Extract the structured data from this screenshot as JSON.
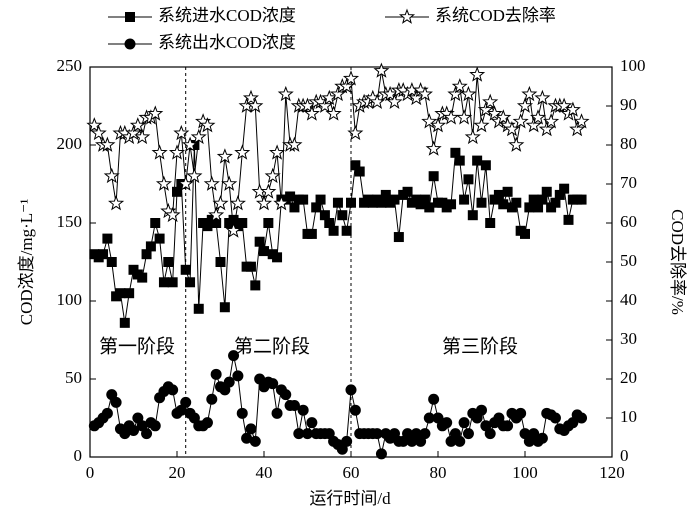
{
  "chart_data": {
    "type": "line",
    "xlabel": "运行时间/d",
    "ylabel": "COD浓度/mg·L⁻¹",
    "y2label": "COD去除率/%",
    "xlim": [
      0,
      120
    ],
    "xticks": [
      0,
      20,
      40,
      60,
      80,
      100,
      120
    ],
    "ylim": [
      0,
      250
    ],
    "yticks": [
      0,
      50,
      100,
      150,
      200,
      250
    ],
    "y2lim": [
      0,
      100
    ],
    "y2ticks": [
      0,
      10,
      20,
      30,
      40,
      50,
      60,
      70,
      80,
      90,
      100
    ],
    "phase_boundaries": [
      22,
      60
    ],
    "annotations": [
      "第一阶段",
      "第二阶段",
      "第三阶段"
    ],
    "x": [
      1,
      2,
      3,
      4,
      5,
      6,
      7,
      8,
      9,
      10,
      11,
      12,
      13,
      14,
      15,
      16,
      17,
      18,
      19,
      20,
      21,
      22,
      23,
      24,
      25,
      26,
      27,
      28,
      29,
      30,
      31,
      32,
      33,
      34,
      35,
      36,
      37,
      38,
      39,
      40,
      41,
      42,
      43,
      44,
      45,
      46,
      47,
      48,
      49,
      50,
      51,
      52,
      53,
      54,
      55,
      56,
      57,
      58,
      59,
      60,
      61,
      62,
      63,
      64,
      65,
      66,
      67,
      68,
      69,
      70,
      71,
      72,
      73,
      74,
      75,
      76,
      77,
      78,
      79,
      80,
      81,
      82,
      83,
      84,
      85,
      86,
      87,
      88,
      89,
      90,
      91,
      92,
      93,
      94,
      95,
      96,
      97,
      98,
      99,
      100,
      101,
      102,
      103,
      104,
      105,
      106,
      107,
      108,
      109,
      110,
      111,
      112,
      113
    ],
    "series": [
      {
        "name": "系统进水COD浓度",
        "color": "#000000",
        "marker": "square",
        "values": [
          130,
          128,
          130,
          140,
          125,
          103,
          105,
          86,
          105,
          120,
          117,
          115,
          130,
          135,
          150,
          140,
          112,
          125,
          112,
          170,
          175,
          120,
          112,
          200,
          95,
          150,
          148,
          152,
          150,
          125,
          96,
          150,
          152,
          148,
          150,
          122,
          122,
          110,
          138,
          132,
          150,
          130,
          128,
          165,
          165,
          167,
          160,
          165,
          165,
          143,
          143,
          160,
          165,
          155,
          150,
          145,
          163,
          155,
          145,
          163,
          187,
          183,
          163,
          165,
          163,
          165,
          163,
          168,
          163,
          165,
          141,
          168,
          170,
          163,
          165,
          162,
          165,
          160,
          180,
          163,
          163,
          160,
          162,
          195,
          190,
          165,
          178,
          155,
          190,
          163,
          187,
          150,
          165,
          168,
          162,
          170,
          160,
          163,
          145,
          143,
          160,
          165,
          160,
          165,
          170,
          160,
          163,
          168,
          172,
          152,
          165,
          165,
          165
        ]
      },
      {
        "name": "系统出水COD浓度",
        "color": "#000000",
        "marker": "circle",
        "values": [
          20,
          22,
          25,
          28,
          40,
          35,
          18,
          15,
          20,
          17,
          25,
          20,
          15,
          22,
          20,
          38,
          42,
          45,
          43,
          28,
          30,
          35,
          28,
          25,
          20,
          20,
          22,
          37,
          53,
          45,
          43,
          48,
          65,
          52,
          28,
          12,
          18,
          10,
          50,
          45,
          48,
          47,
          28,
          43,
          40,
          33,
          33,
          15,
          30,
          15,
          22,
          15,
          15,
          15,
          15,
          10,
          8,
          5,
          10,
          43,
          30,
          15,
          15,
          15,
          15,
          15,
          2,
          15,
          12,
          15,
          10,
          10,
          15,
          10,
          15,
          10,
          15,
          25,
          37,
          25,
          20,
          22,
          10,
          15,
          10,
          22,
          15,
          28,
          25,
          30,
          20,
          15,
          22,
          25,
          20,
          20,
          28,
          25,
          28,
          15,
          10,
          15,
          10,
          12,
          28,
          27,
          25,
          18,
          17,
          20,
          22,
          27,
          25
        ]
      },
      {
        "name": "系统COD去除率",
        "color": "#000000",
        "marker": "star",
        "axis": "y2",
        "values": [
          85,
          83,
          80,
          80,
          72,
          65,
          83,
          83,
          82,
          83,
          85,
          82,
          87,
          87,
          88,
          78,
          70,
          63,
          62,
          78,
          83,
          70,
          80,
          72,
          82,
          86,
          85,
          70,
          62,
          65,
          77,
          70,
          58,
          65,
          78,
          90,
          92,
          90,
          68,
          65,
          68,
          72,
          78,
          65,
          93,
          80,
          80,
          90,
          90,
          90,
          88,
          91,
          91,
          90,
          92,
          88,
          93,
          95,
          95,
          97,
          83,
          90,
          91,
          91,
          92,
          91,
          99,
          93,
          93,
          91,
          94,
          94,
          93,
          94,
          92,
          94,
          93,
          86,
          79,
          85,
          88,
          88,
          87,
          93,
          95,
          87,
          93,
          82,
          98,
          85,
          89,
          91,
          88,
          86,
          87,
          85,
          84,
          80,
          86,
          90,
          93,
          85,
          87,
          92,
          84,
          86,
          90,
          90,
          90,
          88,
          89,
          84,
          86
        ]
      }
    ]
  }
}
